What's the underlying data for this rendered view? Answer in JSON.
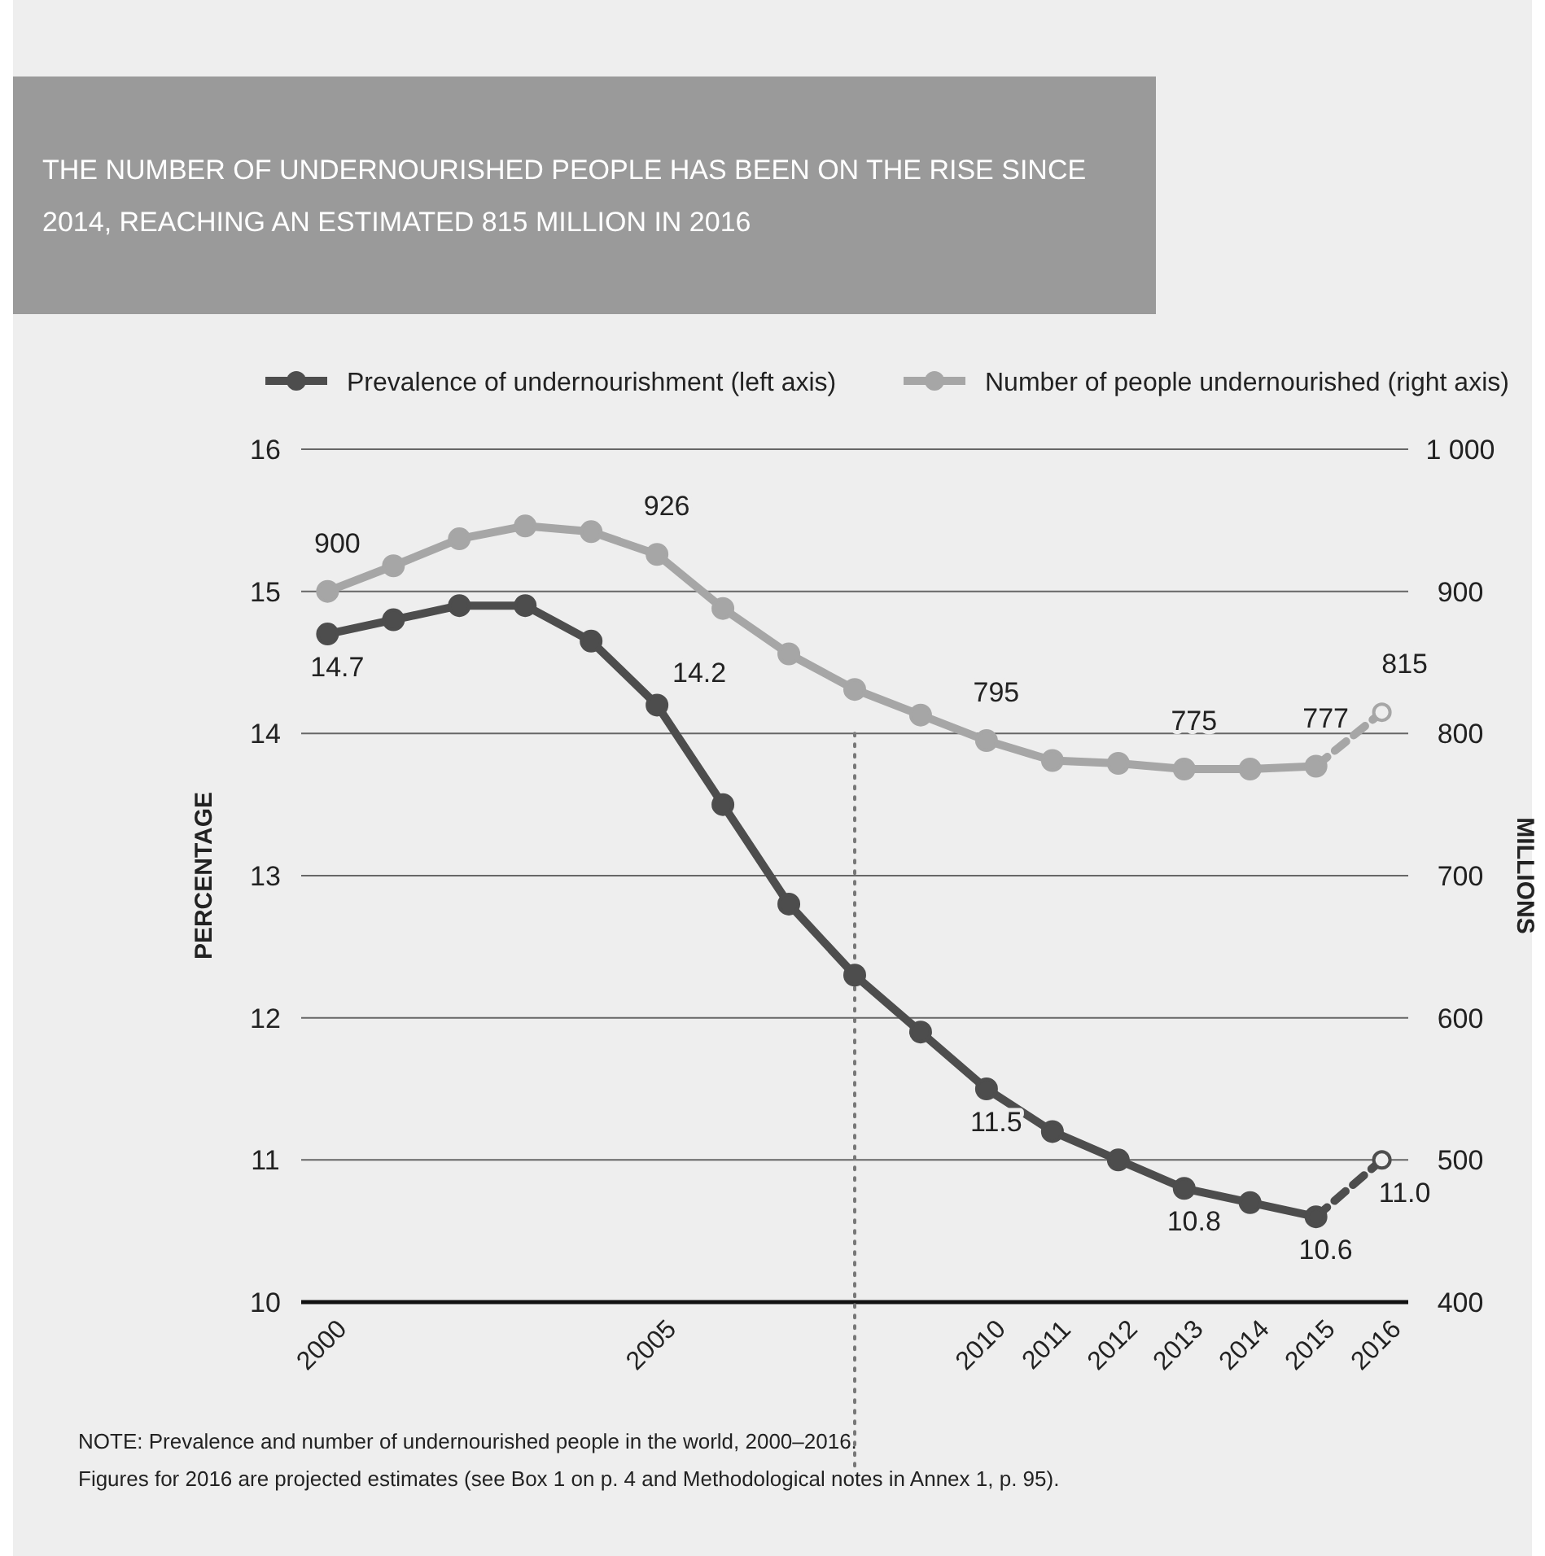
{
  "chart_data": {
    "type": "line",
    "title": "THE NUMBER OF UNDERNOURISHED PEOPLE HAS BEEN ON THE RISE SINCE 2014, REACHING AN ESTIMATED 815 MILLION IN 2016",
    "ylabel": "PERCENTAGE",
    "y2label": "MILLIONS",
    "x": [
      2000,
      2001,
      2002,
      2003,
      2004,
      2005,
      2006,
      2007,
      2008,
      2009,
      2010,
      2011,
      2012,
      2013,
      2014,
      2015,
      2016
    ],
    "xlim": [
      1999.6,
      2016.4
    ],
    "xticks": [
      2000,
      2005,
      2010,
      2011,
      2012,
      2013,
      2014,
      2015,
      2016
    ],
    "ylim": [
      10,
      16
    ],
    "yticks": [
      10,
      11,
      12,
      13,
      14,
      15,
      16
    ],
    "y2lim": [
      400,
      1000
    ],
    "y2ticks": [
      400,
      500,
      600,
      700,
      800,
      900,
      {
        "value": 1000,
        "label": "1 000"
      }
    ],
    "series": [
      {
        "name": "Prevalence of undernourishment  (left axis)",
        "color": "#4d4d4d",
        "values": [
          14.7,
          14.8,
          14.9,
          14.9,
          14.65,
          14.2,
          13.5,
          12.8,
          12.3,
          11.9,
          11.5,
          11.2,
          11.0,
          10.8,
          10.7,
          10.6,
          null
        ],
        "value_labels": [
          "14.7",
          null,
          null,
          null,
          null,
          "14.2",
          null,
          null,
          null,
          null,
          "11.5",
          null,
          null,
          "10.8",
          null,
          "10.6",
          null
        ]
      },
      {
        "name": "Number of people undernourished (right axis)",
        "color": "#a6a6a6",
        "axis": "y2",
        "values": [
          900,
          918,
          937,
          946,
          942,
          926,
          888,
          856,
          831,
          813,
          795,
          781,
          779,
          775,
          775,
          777,
          null
        ],
        "value_labels": [
          "900",
          null,
          null,
          null,
          null,
          "926",
          null,
          null,
          null,
          null,
          "795",
          null,
          null,
          "775",
          null,
          "777",
          null
        ]
      },
      {
        "color": "#a6a6a6",
        "axis": "y2",
        "line_style": "dashed",
        "marker": "circle",
        "values": [
          null,
          null,
          null,
          null,
          null,
          null,
          null,
          null,
          null,
          null,
          null,
          null,
          null,
          null,
          null,
          777,
          815
        ],
        "value_labels": [
          null,
          null,
          null,
          null,
          null,
          null,
          null,
          null,
          null,
          null,
          null,
          null,
          null,
          null,
          null,
          null,
          "815"
        ]
      },
      {
        "color": "#4d4d4d",
        "line_style": "dashed",
        "marker": "circle",
        "values": [
          null,
          null,
          null,
          null,
          null,
          null,
          null,
          null,
          null,
          null,
          null,
          null,
          null,
          null,
          null,
          10.6,
          11.0
        ],
        "value_labels": [
          null,
          null,
          null,
          null,
          null,
          null,
          null,
          null,
          null,
          null,
          null,
          null,
          null,
          null,
          null,
          null,
          "11.0"
        ]
      }
    ],
    "marker": "circle",
    "line_style": "solid",
    "grid": "y",
    "legend": "top",
    "ref_lines": [
      {
        "axis": "x",
        "value": 2008,
        "color": "#777777",
        "line_style": "dotted"
      }
    ],
    "annotations": [
      "NOTE: Prevalence and number of undernourished people in the world, 2000–2016.",
      "Figures for 2016 are projected estimates (see Box 1 on p. 4 and Methodological notes in Annex 1, p. 95)."
    ]
  }
}
